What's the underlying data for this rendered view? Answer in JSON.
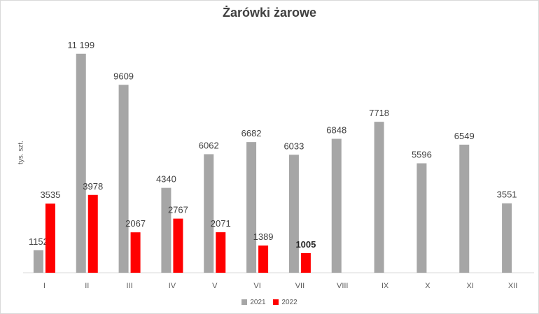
{
  "chart_data": {
    "type": "bar",
    "title": "Żarówki żarowe",
    "ylabel": "tys. szt.",
    "xlabel": "",
    "categories": [
      "I",
      "II",
      "III",
      "IV",
      "V",
      "VI",
      "VII",
      "VIII",
      "IX",
      "X",
      "XI",
      "XII"
    ],
    "series": [
      {
        "name": "2021",
        "color": "#a6a6a6",
        "values": [
          1152,
          11199,
          9609,
          4340,
          6062,
          6682,
          6033,
          6848,
          7718,
          5596,
          6549,
          3551
        ],
        "labels": [
          "1152",
          "11 199",
          "9609",
          "4340",
          "6062",
          "6682",
          "6033",
          "6848",
          "7718",
          "5596",
          "6549",
          "3551"
        ]
      },
      {
        "name": "2022",
        "color": "#ff0000",
        "values": [
          3535,
          3978,
          2067,
          2767,
          2071,
          1389,
          1005,
          null,
          null,
          null,
          null,
          null
        ],
        "labels": [
          "3535",
          "3978",
          "2067",
          "2767",
          "2071",
          "1389",
          "1005",
          "",
          "",
          "",
          "",
          ""
        ],
        "bold_last_label": true
      }
    ],
    "ylim": [
      0,
      11800
    ],
    "grid": false,
    "legend": "bottom"
  }
}
